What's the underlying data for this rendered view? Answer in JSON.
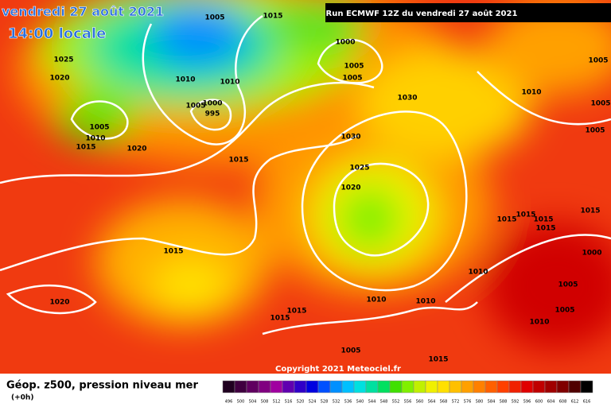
{
  "header": {
    "date": "vendredi 27 août 2021",
    "time": "14:00 locale"
  },
  "run_label": "Run ECMWF 12Z du vendredi 27 août 2021",
  "copyright": "Copyright 2021 Meteociel.fr",
  "legend": {
    "title": "Géop. z500, pression niveau mer",
    "subtitle": "(+0h)",
    "values": [
      496,
      500,
      504,
      508,
      512,
      516,
      520,
      524,
      528,
      532,
      536,
      540,
      544,
      548,
      552,
      556,
      560,
      564,
      568,
      572,
      576,
      580,
      584,
      588,
      592,
      596,
      600,
      604,
      608,
      612,
      616
    ],
    "colors": [
      "#200020",
      "#400040",
      "#600060",
      "#800080",
      "#a000a0",
      "#6000b0",
      "#3000c8",
      "#0000e0",
      "#0050ff",
      "#0090ff",
      "#00c0ff",
      "#00e0e0",
      "#00e0a0",
      "#00e060",
      "#40e000",
      "#80f000",
      "#c0f000",
      "#f0f000",
      "#ffe000",
      "#ffc000",
      "#ffa000",
      "#ff8000",
      "#ff6000",
      "#ff4000",
      "#f02000",
      "#e00000",
      "#c00000",
      "#a00000",
      "#800000",
      "#500000",
      "#000000"
    ]
  },
  "isobar_labels": [
    "1005",
    "1015",
    "1025",
    "1020",
    "1010",
    "1010",
    "1000",
    "1005",
    "1005",
    "1010",
    "1005",
    "1005",
    "1005",
    "1000",
    "995",
    "1005",
    "1010",
    "1015",
    "1020",
    "1015",
    "1030",
    "1030",
    "1025",
    "1020",
    "1015",
    "1020",
    "1015",
    "1015",
    "1010",
    "1010",
    "1010",
    "1015",
    "1015",
    "1015",
    "1015",
    "1015",
    "1000",
    "1005",
    "1005",
    "1010",
    "1005",
    "1015",
    "1005"
  ]
}
